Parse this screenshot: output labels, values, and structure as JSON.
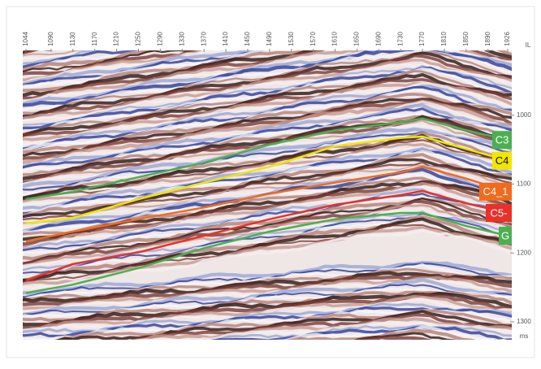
{
  "chart_data": {
    "type": "line",
    "x_label": "IL",
    "y_label": "ms",
    "xlim": [
      1044,
      1926
    ],
    "xticks": [
      1044,
      1090,
      1130,
      1170,
      1210,
      1250,
      1290,
      1330,
      1370,
      1410,
      1450,
      1490,
      1530,
      1570,
      1610,
      1650,
      1690,
      1730,
      1770,
      1810,
      1850,
      1890,
      1926
    ],
    "ylim": [
      906,
      1326
    ],
    "y_inverted": true,
    "yticks": [
      1000,
      1100,
      1200,
      1300
    ],
    "x": [
      1044,
      1130,
      1250,
      1370,
      1490,
      1610,
      1730,
      1770,
      1850,
      1926
    ],
    "series": [
      {
        "name": "C3",
        "color": "#4caf50",
        "values": [
          1122,
          1111,
          1090,
          1069,
          1043,
          1022,
          1010,
          1005,
          1022,
          1036
        ]
      },
      {
        "name": "C4",
        "color": "#f2e600",
        "values": [
          1157,
          1149,
          1122,
          1098,
          1075,
          1045,
          1033,
          1031,
          1049,
          1066
        ]
      },
      {
        "name": "C4_1",
        "color": "#f26a1b",
        "values": [
          1183,
          1169,
          1151,
          1134,
          1114,
          1098,
          1083,
          1075,
          1092,
          1111
        ]
      },
      {
        "name": "C5-",
        "color": "#e8312a",
        "values": [
          1240,
          1216,
          1199,
          1175,
          1151,
          1130,
          1116,
          1110,
          1128,
          1142
        ]
      },
      {
        "name": "G",
        "color": "#4caf50",
        "values": [
          1258,
          1246,
          1222,
          1193,
          1169,
          1151,
          1142,
          1142,
          1161,
          1175
        ]
      }
    ]
  }
}
